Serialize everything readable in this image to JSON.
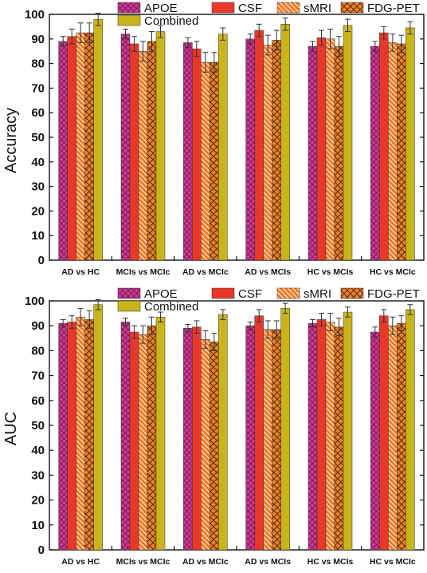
{
  "legend": {
    "entries": [
      {
        "key": "apoe",
        "label": "APOE",
        "color": "#d6369a",
        "hatch": "cross"
      },
      {
        "key": "csf",
        "label": "CSF",
        "color": "#e8382a",
        "hatch": "none"
      },
      {
        "key": "smri",
        "label": "sMRI",
        "color": "#f07a22",
        "hatch": "backslash"
      },
      {
        "key": "fdgpet",
        "label": "FDG-PET",
        "color": "#e9822a",
        "hatch": "cross-dark"
      },
      {
        "key": "combined",
        "label": "Combined",
        "color": "#c9b41c",
        "hatch": "none"
      }
    ]
  },
  "chart_data": [
    {
      "type": "bar",
      "ylabel": "Accuracy",
      "xlabel": "",
      "ylim": [
        0,
        100
      ],
      "yticks": [
        0,
        10,
        20,
        30,
        40,
        50,
        60,
        70,
        80,
        90,
        100
      ],
      "grid": false,
      "legend_position": "top",
      "categories": [
        "AD vs HC",
        "MCIs vs MCIc",
        "AD vs MCIc",
        "AD vs MCIs",
        "HC vs MCIs",
        "HC vs MCIc"
      ],
      "series": [
        {
          "name": "APOE",
          "values": [
            89,
            92,
            88.5,
            90,
            87,
            87
          ],
          "errors": [
            2,
            2,
            2,
            2,
            2,
            2
          ]
        },
        {
          "name": "CSF",
          "values": [
            91,
            88,
            86,
            93.5,
            90.5,
            92.5
          ],
          "errors": [
            3,
            3,
            3,
            2.5,
            3,
            2.5
          ]
        },
        {
          "name": "sMRI",
          "values": [
            92.5,
            85,
            80.5,
            87.5,
            90,
            88.5
          ],
          "errors": [
            4,
            4,
            4,
            4,
            4,
            3.5
          ]
        },
        {
          "name": "FDG-PET",
          "values": [
            92.5,
            89,
            80.5,
            89.5,
            87,
            88
          ],
          "errors": [
            4,
            4,
            4,
            4,
            4,
            3.5
          ]
        },
        {
          "name": "Combined",
          "values": [
            98,
            93,
            92,
            96,
            95.5,
            94.5
          ],
          "errors": [
            2.5,
            2.5,
            2.5,
            2.5,
            2.5,
            2.5
          ]
        }
      ]
    },
    {
      "type": "bar",
      "ylabel": "AUC",
      "xlabel": "",
      "ylim": [
        0,
        100
      ],
      "yticks": [
        0,
        10,
        20,
        30,
        40,
        50,
        60,
        70,
        80,
        90,
        100
      ],
      "grid": false,
      "legend_position": "top",
      "categories": [
        "AD vs HC",
        "MCIs vs MCIc",
        "AD vs MCIc",
        "AD vs MCIs",
        "HC vs MCIs",
        "HC vs MCIc"
      ],
      "series": [
        {
          "name": "APOE",
          "values": [
            91,
            91.5,
            89,
            90,
            91,
            87.5
          ],
          "errors": [
            1.5,
            1.5,
            1.5,
            1.5,
            1.5,
            2
          ]
        },
        {
          "name": "CSF",
          "values": [
            91.5,
            87.5,
            89.5,
            94,
            92.5,
            94
          ],
          "errors": [
            2.5,
            2.5,
            2.5,
            2.5,
            2.5,
            2.5
          ]
        },
        {
          "name": "sMRI",
          "values": [
            93.5,
            86.5,
            84.5,
            88.5,
            91.5,
            90
          ],
          "errors": [
            3.5,
            3.5,
            3.5,
            3.5,
            3.5,
            3.5
          ]
        },
        {
          "name": "FDG-PET",
          "values": [
            92.5,
            90,
            83.5,
            88.5,
            89.5,
            91
          ],
          "errors": [
            3.5,
            3.5,
            3.5,
            3.5,
            3.5,
            3
          ]
        },
        {
          "name": "Combined",
          "values": [
            98.5,
            93.5,
            94.5,
            97,
            95.5,
            96.5
          ],
          "errors": [
            2,
            2,
            2,
            2,
            2,
            2
          ]
        }
      ]
    }
  ]
}
